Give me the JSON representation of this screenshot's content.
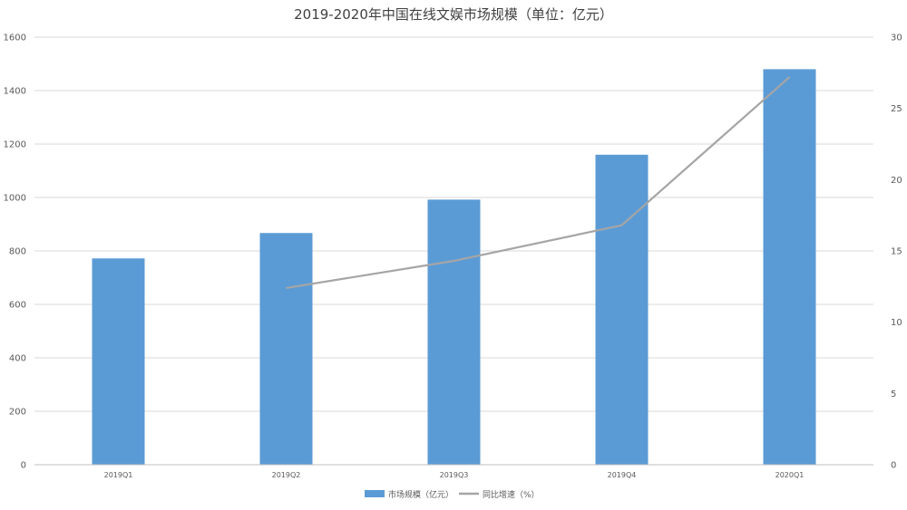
{
  "chart_data": {
    "type": "bar",
    "title": "2019-2020年中国在线文娱市场规模（单位：亿元）",
    "categories": [
      "2019Q1",
      "2019Q2",
      "2019Q3",
      "2019Q4",
      "2020Q1"
    ],
    "series": [
      {
        "name": "市场规模（亿元）",
        "type": "bar",
        "axis": "left",
        "color": "#5B9BD5",
        "values": [
          772,
          867,
          992,
          1160,
          1480
        ]
      },
      {
        "name": "同比增速（%）",
        "type": "line",
        "axis": "right",
        "color": "#A5A5A5",
        "values": [
          null,
          12.4,
          14.3,
          16.8,
          27.2
        ]
      }
    ],
    "ylim": [
      0,
      1600
    ],
    "yticks": [
      "0",
      "200",
      "400",
      "600",
      "800",
      "1000",
      "1200",
      "1400",
      "1600"
    ],
    "y2lim": [
      0,
      30
    ],
    "y2ticks": [
      "0",
      "5",
      "10",
      "15",
      "20",
      "25",
      "30"
    ],
    "grid": true,
    "legend_position": "bottom"
  }
}
